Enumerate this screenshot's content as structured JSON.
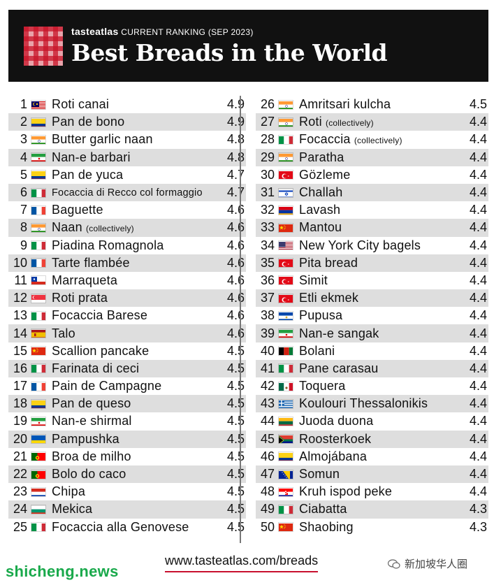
{
  "header": {
    "brand": "tasteatlas",
    "subtitle": "CURRENT RANKING (SEP 2023)",
    "title": "Best Breads in the World"
  },
  "left_rows": [
    {
      "rank": "1",
      "name": "Roti canai",
      "sub": "",
      "score": "4.9",
      "flag": "malaysia"
    },
    {
      "rank": "2",
      "name": "Pan de bono",
      "sub": "",
      "score": "4.9",
      "flag": "colombia"
    },
    {
      "rank": "3",
      "name": "Butter garlic naan",
      "sub": "",
      "score": "4.8",
      "flag": "india"
    },
    {
      "rank": "4",
      "name": "Nan-e barbari",
      "sub": "",
      "score": "4.8",
      "flag": "iran"
    },
    {
      "rank": "5",
      "name": "Pan de yuca",
      "sub": "",
      "score": "4.7",
      "flag": "colombia"
    },
    {
      "rank": "6",
      "name": "Focaccia di Recco col formaggio",
      "sub": "",
      "score": "4.7",
      "flag": "italy"
    },
    {
      "rank": "7",
      "name": "Baguette",
      "sub": "",
      "score": "4.6",
      "flag": "france"
    },
    {
      "rank": "8",
      "name": "Naan",
      "sub": "(collectively)",
      "score": "4.6",
      "flag": "india"
    },
    {
      "rank": "9",
      "name": "Piadina Romagnola",
      "sub": "",
      "score": "4.6",
      "flag": "italy"
    },
    {
      "rank": "10",
      "name": "Tarte flambée",
      "sub": "",
      "score": "4.6",
      "flag": "france"
    },
    {
      "rank": "11",
      "name": "Marraqueta",
      "sub": "",
      "score": "4.6",
      "flag": "chile"
    },
    {
      "rank": "12",
      "name": "Roti prata",
      "sub": "",
      "score": "4.6",
      "flag": "singapore"
    },
    {
      "rank": "13",
      "name": "Focaccia Barese",
      "sub": "",
      "score": "4.6",
      "flag": "italy"
    },
    {
      "rank": "14",
      "name": "Talo",
      "sub": "",
      "score": "4.6",
      "flag": "spain"
    },
    {
      "rank": "15",
      "name": "Scallion pancake",
      "sub": "",
      "score": "4.5",
      "flag": "china"
    },
    {
      "rank": "16",
      "name": "Farinata di ceci",
      "sub": "",
      "score": "4.5",
      "flag": "italy"
    },
    {
      "rank": "17",
      "name": "Pain de Campagne",
      "sub": "",
      "score": "4.5",
      "flag": "france"
    },
    {
      "rank": "18",
      "name": "Pan de queso",
      "sub": "",
      "score": "4.5",
      "flag": "colombia"
    },
    {
      "rank": "19",
      "name": "Nan-e shirmal",
      "sub": "",
      "score": "4.5",
      "flag": "iran"
    },
    {
      "rank": "20",
      "name": "Pampushka",
      "sub": "",
      "score": "4.5",
      "flag": "ukraine"
    },
    {
      "rank": "21",
      "name": "Broa de milho",
      "sub": "",
      "score": "4.5",
      "flag": "portugal"
    },
    {
      "rank": "22",
      "name": "Bolo do caco",
      "sub": "",
      "score": "4.5",
      "flag": "portugal"
    },
    {
      "rank": "23",
      "name": "Chipa",
      "sub": "",
      "score": "4.5",
      "flag": "paraguay"
    },
    {
      "rank": "24",
      "name": "Mekica",
      "sub": "",
      "score": "4.5",
      "flag": "bulgaria"
    },
    {
      "rank": "25",
      "name": "Focaccia alla Genovese",
      "sub": "",
      "score": "4.5",
      "flag": "italy"
    }
  ],
  "right_rows": [
    {
      "rank": "26",
      "name": "Amritsari kulcha",
      "sub": "",
      "score": "4.5",
      "flag": "india"
    },
    {
      "rank": "27",
      "name": "Roti",
      "sub": "(collectively)",
      "score": "4.4",
      "flag": "india"
    },
    {
      "rank": "28",
      "name": "Focaccia",
      "sub": "(collectively)",
      "score": "4.4",
      "flag": "italy"
    },
    {
      "rank": "29",
      "name": "Paratha",
      "sub": "",
      "score": "4.4",
      "flag": "india"
    },
    {
      "rank": "30",
      "name": "Gözleme",
      "sub": "",
      "score": "4.4",
      "flag": "turkey"
    },
    {
      "rank": "31",
      "name": "Challah",
      "sub": "",
      "score": "4.4",
      "flag": "israel"
    },
    {
      "rank": "32",
      "name": "Lavash",
      "sub": "",
      "score": "4.4",
      "flag": "armenia"
    },
    {
      "rank": "33",
      "name": "Mantou",
      "sub": "",
      "score": "4.4",
      "flag": "china"
    },
    {
      "rank": "34",
      "name": "New York City bagels",
      "sub": "",
      "score": "4.4",
      "flag": "usa"
    },
    {
      "rank": "35",
      "name": "Pita bread",
      "sub": "",
      "score": "4.4",
      "flag": "turkey"
    },
    {
      "rank": "36",
      "name": "Simit",
      "sub": "",
      "score": "4.4",
      "flag": "turkey"
    },
    {
      "rank": "37",
      "name": "Etli ekmek",
      "sub": "",
      "score": "4.4",
      "flag": "turkey"
    },
    {
      "rank": "38",
      "name": "Pupusa",
      "sub": "",
      "score": "4.4",
      "flag": "elsalvador"
    },
    {
      "rank": "39",
      "name": "Nan-e sangak",
      "sub": "",
      "score": "4.4",
      "flag": "iran"
    },
    {
      "rank": "40",
      "name": "Bolani",
      "sub": "",
      "score": "4.4",
      "flag": "afghanistan"
    },
    {
      "rank": "41",
      "name": "Pane carasau",
      "sub": "",
      "score": "4.4",
      "flag": "italy"
    },
    {
      "rank": "42",
      "name": "Toquera",
      "sub": "",
      "score": "4.4",
      "flag": "mexico"
    },
    {
      "rank": "43",
      "name": "Koulouri Thessalonikis",
      "sub": "",
      "score": "4.4",
      "flag": "greece"
    },
    {
      "rank": "44",
      "name": "Juoda duona",
      "sub": "",
      "score": "4.4",
      "flag": "lithuania"
    },
    {
      "rank": "45",
      "name": "Roosterkoek",
      "sub": "",
      "score": "4.4",
      "flag": "southafrica"
    },
    {
      "rank": "46",
      "name": "Almojábana",
      "sub": "",
      "score": "4.4",
      "flag": "colombia"
    },
    {
      "rank": "47",
      "name": "Somun",
      "sub": "",
      "score": "4.4",
      "flag": "bosnia"
    },
    {
      "rank": "48",
      "name": "Kruh ispod peke",
      "sub": "",
      "score": "4.4",
      "flag": "croatia"
    },
    {
      "rank": "49",
      "name": "Ciabatta",
      "sub": "",
      "score": "4.3",
      "flag": "italy"
    },
    {
      "rank": "50",
      "name": "Shaobing",
      "sub": "",
      "score": "4.3",
      "flag": "china"
    }
  ],
  "footer": {
    "url": "www.tasteatlas.com/breads",
    "watermark_left": "shicheng.news",
    "watermark_right": "新加坡华人圈"
  },
  "colors": {
    "header_bg": "#111111",
    "row_alt": "#dedede",
    "url_underline": "#c8102e",
    "watermark_green": "#19a94b"
  }
}
